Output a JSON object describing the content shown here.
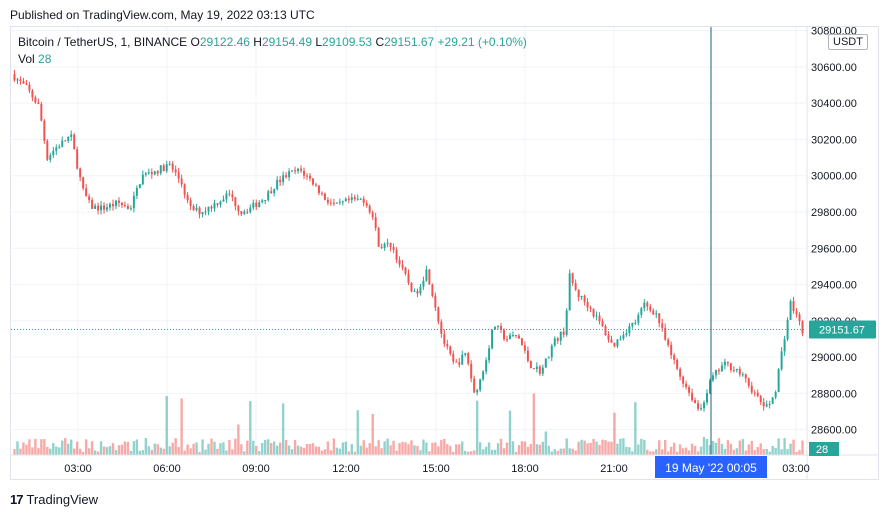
{
  "published": "Published on TradingView.com, May 19, 2022 03:13 UTC",
  "legend": {
    "symbol": "Bitcoin / TetherUS, 1, BINANCE",
    "o_label": "O",
    "o": "29122.46",
    "h_label": "H",
    "h": "29154.49",
    "l_label": "L",
    "l": "29109.53",
    "c_label": "C",
    "c": "29151.67",
    "change": "+29.21 (+0.10%)",
    "vol_label": "Vol",
    "vol": "28"
  },
  "currency_button": "USDT",
  "footer_brand": "TradingView",
  "footer_logo": "17",
  "colors": {
    "up": "#26a69a",
    "down": "#ef5350",
    "crosshair": "#2962ff",
    "price_tag": "#26a69a"
  },
  "chart_data": {
    "type": "candlestick",
    "x_ticks": [
      "03:00",
      "06:00",
      "09:00",
      "12:00",
      "15:00",
      "18:00",
      "21:00",
      "03:00"
    ],
    "y_ticks": [
      "28600.00",
      "28800.00",
      "29000.00",
      "29200.00",
      "29400.00",
      "29600.00",
      "29800.00",
      "30000.00",
      "30200.00",
      "30400.00",
      "30600.00",
      "30800.00"
    ],
    "ylim": [
      28460,
      30820
    ],
    "last_price": "29151.67",
    "last_price_value": 29151.67,
    "last_volume": "28",
    "crosshair_label": "19 May '22   00:05",
    "price_path": [
      [
        0,
        30560
      ],
      [
        0.02,
        30480
      ],
      [
        0.035,
        30380
      ],
      [
        0.045,
        30100
      ],
      [
        0.055,
        30150
      ],
      [
        0.075,
        30220
      ],
      [
        0.09,
        29920
      ],
      [
        0.1,
        29830
      ],
      [
        0.115,
        29820
      ],
      [
        0.135,
        29850
      ],
      [
        0.15,
        29820
      ],
      [
        0.165,
        30000
      ],
      [
        0.185,
        30030
      ],
      [
        0.2,
        30060
      ],
      [
        0.215,
        29960
      ],
      [
        0.225,
        29820
      ],
      [
        0.24,
        29800
      ],
      [
        0.255,
        29840
      ],
      [
        0.275,
        29900
      ],
      [
        0.29,
        29800
      ],
      [
        0.305,
        29830
      ],
      [
        0.32,
        29880
      ],
      [
        0.335,
        29960
      ],
      [
        0.35,
        30010
      ],
      [
        0.365,
        30030
      ],
      [
        0.38,
        29970
      ],
      [
        0.395,
        29880
      ],
      [
        0.41,
        29830
      ],
      [
        0.425,
        29860
      ],
      [
        0.445,
        29870
      ],
      [
        0.455,
        29800
      ],
      [
        0.465,
        29610
      ],
      [
        0.48,
        29620
      ],
      [
        0.495,
        29470
      ],
      [
        0.51,
        29340
      ],
      [
        0.525,
        29480
      ],
      [
        0.535,
        29300
      ],
      [
        0.545,
        29100
      ],
      [
        0.56,
        28950
      ],
      [
        0.575,
        29020
      ],
      [
        0.585,
        28800
      ],
      [
        0.595,
        28900
      ],
      [
        0.61,
        29180
      ],
      [
        0.625,
        29100
      ],
      [
        0.64,
        29120
      ],
      [
        0.655,
        28960
      ],
      [
        0.67,
        28920
      ],
      [
        0.685,
        29080
      ],
      [
        0.7,
        29150
      ],
      [
        0.705,
        29450
      ],
      [
        0.715,
        29350
      ],
      [
        0.73,
        29280
      ],
      [
        0.745,
        29180
      ],
      [
        0.76,
        29060
      ],
      [
        0.775,
        29140
      ],
      [
        0.79,
        29200
      ],
      [
        0.8,
        29290
      ],
      [
        0.815,
        29240
      ],
      [
        0.83,
        29050
      ],
      [
        0.845,
        28900
      ],
      [
        0.86,
        28780
      ],
      [
        0.87,
        28700
      ],
      [
        0.885,
        28880
      ],
      [
        0.9,
        28960
      ],
      [
        0.915,
        28940
      ],
      [
        0.93,
        28860
      ],
      [
        0.945,
        28760
      ],
      [
        0.955,
        28720
      ],
      [
        0.965,
        28800
      ],
      [
        0.975,
        29060
      ],
      [
        0.985,
        29300
      ],
      [
        1.0,
        29150
      ]
    ]
  }
}
